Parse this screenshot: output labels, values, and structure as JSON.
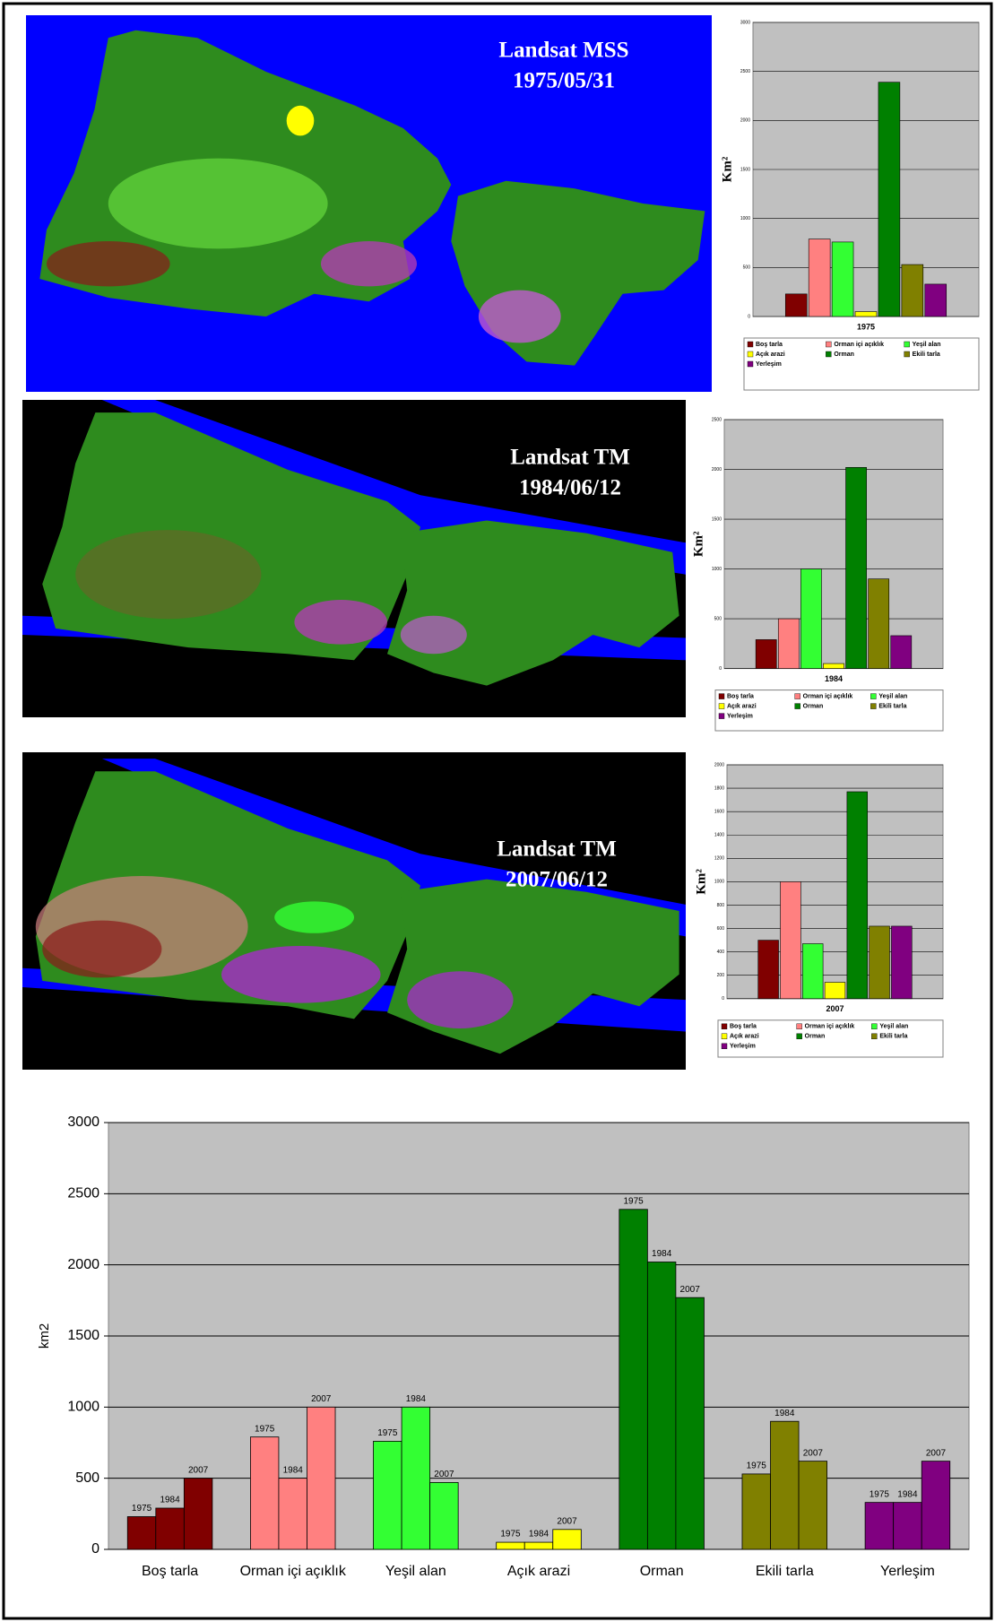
{
  "maps": [
    {
      "sensor": "Landsat MSS",
      "date": "1975/05/31"
    },
    {
      "sensor": "Landsat TM",
      "date": "1984/06/12"
    },
    {
      "sensor": "Landsat TM",
      "date": "2007/06/12"
    }
  ],
  "chart_data": [
    {
      "type": "bar",
      "xlabel": "1975",
      "ylabel": "Km²",
      "categories": [
        "Boş tarla",
        "Orman içi açıklık",
        "Yeşil alan",
        "Açık arazi",
        "Orman",
        "Ekili tarla",
        "Yerleşim"
      ],
      "colors": [
        "#800000",
        "#ff8080",
        "#33ff33",
        "#ffff00",
        "#008000",
        "#808000",
        "#800080"
      ],
      "values": [
        230,
        790,
        760,
        50,
        2390,
        530,
        330
      ],
      "ylim": [
        0,
        3000
      ],
      "yticks": [
        0,
        500,
        1000,
        1500,
        2000,
        2500,
        3000
      ]
    },
    {
      "type": "bar",
      "xlabel": "1984",
      "ylabel": "Km²",
      "categories": [
        "Boş tarla",
        "Orman içi açıklık",
        "Yeşil alan",
        "Açık arazi",
        "Orman",
        "Ekili tarla",
        "Yerleşim"
      ],
      "colors": [
        "#800000",
        "#ff8080",
        "#33ff33",
        "#ffff00",
        "#008000",
        "#808000",
        "#800080"
      ],
      "values": [
        290,
        500,
        1000,
        50,
        2020,
        900,
        330
      ],
      "ylim": [
        0,
        2500
      ],
      "yticks": [
        0,
        500,
        1000,
        1500,
        2000,
        2500
      ]
    },
    {
      "type": "bar",
      "xlabel": "2007",
      "ylabel": "Km²",
      "categories": [
        "Boş tarla",
        "Orman içi açıklık",
        "Yeşil alan",
        "Açık arazi",
        "Orman",
        "Ekili tarla",
        "Yerleşim"
      ],
      "colors": [
        "#800000",
        "#ff8080",
        "#33ff33",
        "#ffff00",
        "#008000",
        "#808000",
        "#800080"
      ],
      "values": [
        500,
        1000,
        470,
        140,
        1770,
        620,
        620
      ],
      "ylim": [
        0,
        2000
      ],
      "yticks": [
        0,
        200,
        400,
        600,
        800,
        1000,
        1200,
        1400,
        1600,
        1800,
        2000
      ]
    },
    {
      "type": "grouped_bar",
      "ylabel": "km2",
      "categories": [
        "Boş tarla",
        "Orman içi açıklık",
        "Yeşil alan",
        "Açık arazi",
        "Orman",
        "Ekili tarla",
        "Yerleşim"
      ],
      "category_colors": [
        "#800000",
        "#ff8080",
        "#33ff33",
        "#ffff00",
        "#008000",
        "#808000",
        "#800080"
      ],
      "series": [
        {
          "name": "1975",
          "values": [
            230,
            790,
            760,
            50,
            2390,
            530,
            330
          ]
        },
        {
          "name": "1984",
          "values": [
            290,
            500,
            1000,
            50,
            2020,
            900,
            330
          ]
        },
        {
          "name": "2007",
          "values": [
            500,
            1000,
            470,
            140,
            1770,
            620,
            620
          ]
        }
      ],
      "ylim": [
        0,
        3000
      ],
      "yticks": [
        0,
        500,
        1000,
        1500,
        2000,
        2500,
        3000
      ],
      "grid": true
    }
  ]
}
